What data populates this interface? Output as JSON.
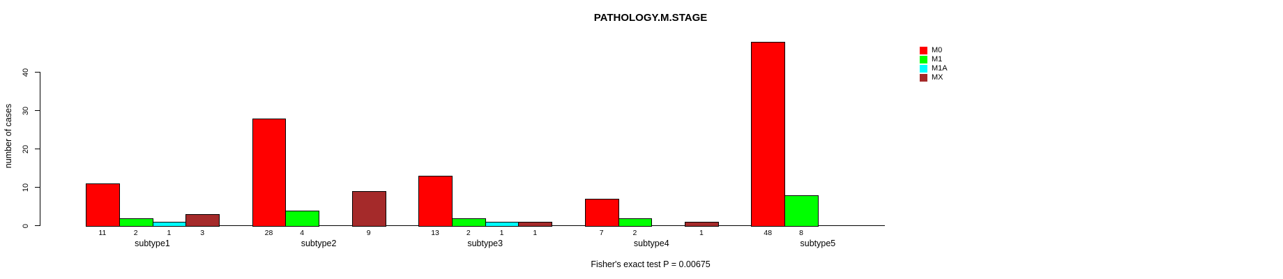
{
  "title": "PATHOLOGY.M.STAGE",
  "footer": "Fisher's exact test P = 0.00675",
  "y_axis": {
    "label": "number of cases",
    "ticks": [
      0,
      10,
      20,
      30,
      40
    ]
  },
  "legend": {
    "position": "right",
    "entries": [
      {
        "label": "M0",
        "color": "#FF0000"
      },
      {
        "label": "M1",
        "color": "#00FF00"
      },
      {
        "label": "M1A",
        "color": "#00FFFF"
      },
      {
        "label": "MX",
        "color": "#A52A2A"
      }
    ]
  },
  "chart_data": {
    "type": "bar",
    "title": "PATHOLOGY.M.STAGE",
    "xlabel": "",
    "ylabel": "number of cases",
    "ylim": [
      0,
      40
    ],
    "grid": false,
    "legend_position": "right-inside",
    "categories": [
      "subtype1",
      "subtype2",
      "subtype3",
      "subtype4",
      "subtype5"
    ],
    "series": [
      {
        "name": "M0",
        "color": "#FF0000",
        "values": [
          11,
          28,
          13,
          7,
          48
        ]
      },
      {
        "name": "M1",
        "color": "#00FF00",
        "values": [
          2,
          4,
          2,
          2,
          8
        ]
      },
      {
        "name": "M1A",
        "color": "#00FFFF",
        "values": [
          1,
          0,
          1,
          0,
          0
        ]
      },
      {
        "name": "MX",
        "color": "#A52A2A",
        "values": [
          3,
          9,
          1,
          1,
          0
        ]
      }
    ],
    "bar_value_labels_shown_for_nonzero_only": true,
    "annotation": "Fisher's exact test P = 0.00675"
  }
}
